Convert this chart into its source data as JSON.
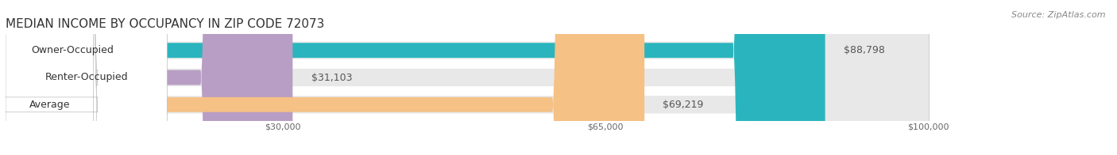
{
  "title": "MEDIAN INCOME BY OCCUPANCY IN ZIP CODE 72073",
  "source": "Source: ZipAtlas.com",
  "categories": [
    "Owner-Occupied",
    "Renter-Occupied",
    "Average"
  ],
  "values": [
    88798,
    31103,
    69219
  ],
  "bar_colors": [
    "#2ab5be",
    "#b89ec4",
    "#f5c185"
  ],
  "xmax": 100000,
  "xticks": [
    30000,
    65000,
    100000
  ],
  "xtick_labels": [
    "$30,000",
    "$65,000",
    "$100,000"
  ],
  "value_labels": [
    "$88,798",
    "$31,103",
    "$69,219"
  ],
  "title_fontsize": 11,
  "source_fontsize": 8,
  "bar_label_fontsize": 9,
  "value_fontsize": 9,
  "tick_fontsize": 8,
  "background_color": "#ffffff"
}
